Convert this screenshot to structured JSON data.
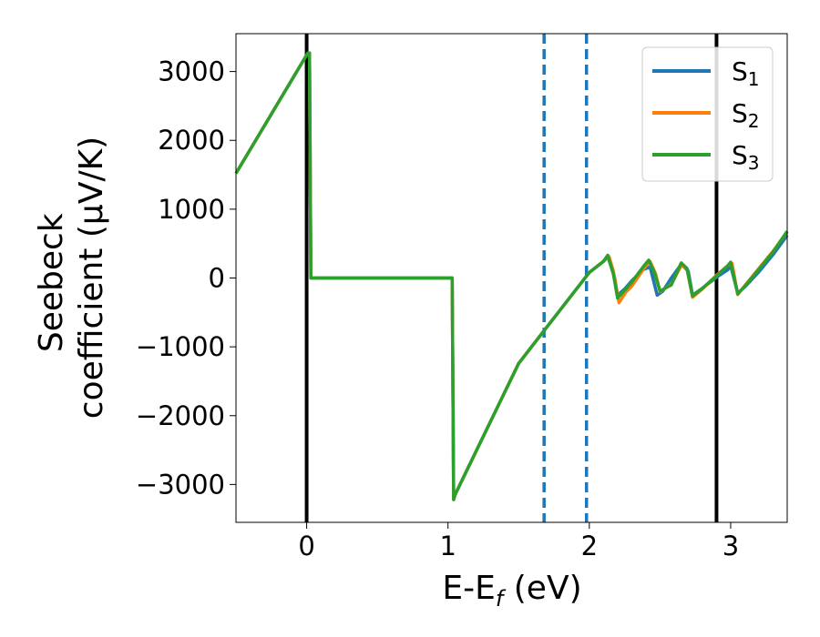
{
  "chart_data": {
    "type": "line",
    "xlabel": "E-E",
    "xlabel_sub": "f",
    "xlabel_unit": " (eV)",
    "ylabel_line1": "Seebeck",
    "ylabel_line2": "coefficient  (μV/K)",
    "xlim": [
      -0.5,
      3.4
    ],
    "ylim": [
      -3550,
      3550
    ],
    "xticks": [
      0,
      1,
      2,
      3
    ],
    "xtick_labels": [
      "0",
      "1",
      "2",
      "3"
    ],
    "yticks": [
      3000,
      2000,
      1000,
      0,
      -1000,
      -2000,
      -3000
    ],
    "ytick_labels": [
      "3000",
      "2000",
      "1000",
      "0",
      "−1000",
      "−2000",
      "−3000"
    ],
    "grid": false,
    "legend_position": "top-right",
    "vlines_solid": [
      0.0,
      2.9
    ],
    "vlines_dashed": [
      1.68,
      1.98
    ],
    "series": [
      {
        "name": "S",
        "sub": "1",
        "color": "#1f77b4",
        "x": [
          -0.5,
          0.0,
          0.01,
          0.02,
          0.03,
          0.99,
          1.03,
          1.04,
          1.05,
          1.5,
          2.0,
          2.1,
          2.13,
          2.18,
          2.2,
          2.25,
          2.3,
          2.38,
          2.43,
          2.48,
          2.52,
          2.58,
          2.65,
          2.7,
          2.73,
          2.8,
          2.9,
          2.98,
          3.0,
          3.05,
          3.1,
          3.2,
          3.3,
          3.4
        ],
        "y": [
          1520,
          3240,
          3270,
          3270,
          0,
          0,
          0,
          -3220,
          -3150,
          -1240,
          80,
          240,
          320,
          0,
          -250,
          -160,
          -40,
          120,
          160,
          -250,
          -190,
          0,
          200,
          100,
          -250,
          -150,
          10,
          120,
          180,
          -220,
          -130,
          90,
          340,
          620
        ]
      },
      {
        "name": "S",
        "sub": "2",
        "color": "#ff7f0e",
        "x": [
          -0.5,
          0.0,
          0.01,
          0.02,
          0.03,
          0.99,
          1.03,
          1.04,
          1.05,
          1.5,
          2.0,
          2.1,
          2.14,
          2.17,
          2.21,
          2.26,
          2.3,
          2.38,
          2.43,
          2.47,
          2.5,
          2.58,
          2.65,
          2.69,
          2.73,
          2.8,
          2.9,
          2.98,
          3.01,
          3.05,
          3.1,
          3.2,
          3.3,
          3.4
        ],
        "y": [
          1520,
          3240,
          3270,
          3270,
          0,
          0,
          0,
          -3220,
          -3150,
          -1240,
          80,
          240,
          310,
          100,
          -360,
          -200,
          -120,
          120,
          240,
          60,
          -200,
          -90,
          180,
          140,
          -280,
          -160,
          40,
          180,
          210,
          -240,
          -110,
          140,
          390,
          670
        ]
      },
      {
        "name": "S",
        "sub": "3",
        "color": "#2ca02c",
        "x": [
          -0.5,
          0.0,
          0.01,
          0.02,
          0.03,
          0.99,
          1.03,
          1.04,
          1.05,
          1.5,
          2.0,
          2.1,
          2.13,
          2.17,
          2.2,
          2.25,
          2.3,
          2.38,
          2.42,
          2.46,
          2.5,
          2.58,
          2.65,
          2.69,
          2.73,
          2.8,
          2.9,
          2.98,
          3.0,
          3.05,
          3.1,
          3.2,
          3.3,
          3.4
        ],
        "y": [
          1520,
          3240,
          3270,
          3270,
          0,
          0,
          0,
          -3220,
          -3150,
          -1240,
          80,
          240,
          330,
          60,
          -290,
          -180,
          -60,
          160,
          260,
          80,
          -190,
          -100,
          220,
          140,
          -260,
          -150,
          30,
          180,
          230,
          -230,
          -120,
          130,
          380,
          680
        ]
      }
    ]
  }
}
